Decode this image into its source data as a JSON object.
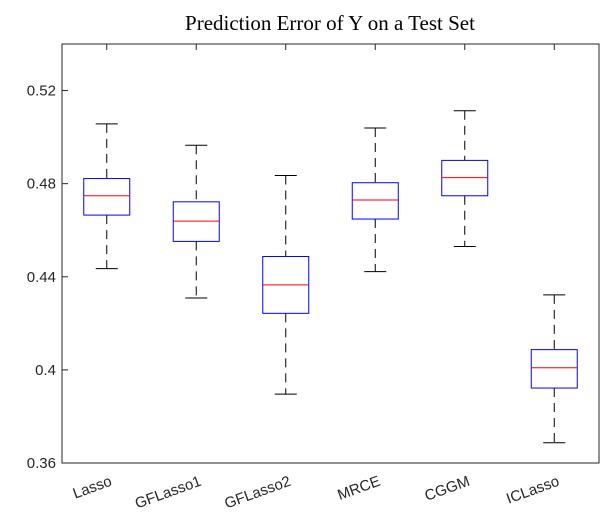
{
  "chart_data": {
    "type": "box",
    "title": "Prediction Error of Y on a Test Set",
    "categories": [
      "Lasso",
      "GFLasso1",
      "GFLasso2",
      "MRCE",
      "CGGM",
      "ICLasso"
    ],
    "min": [
      0.4435,
      0.4309,
      0.3896,
      0.4422,
      0.453,
      0.3687
    ],
    "q1": [
      0.4665,
      0.4552,
      0.4243,
      0.4648,
      0.4748,
      0.3922
    ],
    "median": [
      0.4748,
      0.4639,
      0.4365,
      0.473,
      0.4826,
      0.4009
    ],
    "q3": [
      0.4822,
      0.4722,
      0.4487,
      0.4804,
      0.49,
      0.4087
    ],
    "max": [
      0.5057,
      0.4965,
      0.4835,
      0.5039,
      0.5113,
      0.4322
    ],
    "box_color": "#0000ff",
    "median_color": "#ff0000",
    "whisker_color": "#000000",
    "ylim": [
      0.36,
      0.54
    ],
    "yticks": [
      0.36,
      0.4,
      0.44,
      0.48,
      0.52
    ]
  }
}
